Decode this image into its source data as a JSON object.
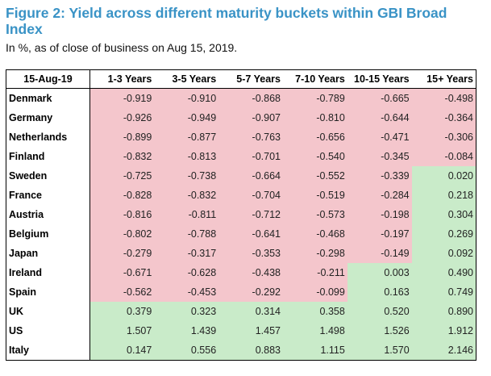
{
  "title": "Figure 2: Yield across different maturity buckets within GBI Broad Index",
  "subtitle": "In %, as of close of business on Aug 15, 2019.",
  "colors": {
    "title": "#3a93c6",
    "negative_cell": "#f4c6cc",
    "positive_cell": "#c9ebc9"
  },
  "table": {
    "headers": [
      "15-Aug-19",
      "1-3 Years",
      "3-5 Years",
      "5-7 Years",
      "7-10 Years",
      "10-15 Years",
      "15+ Years"
    ],
    "rows": [
      {
        "country": "Denmark",
        "values": [
          "-0.919",
          "-0.910",
          "-0.868",
          "-0.789",
          "-0.665",
          "-0.498"
        ]
      },
      {
        "country": "Germany",
        "values": [
          "-0.926",
          "-0.949",
          "-0.907",
          "-0.810",
          "-0.644",
          "-0.364"
        ]
      },
      {
        "country": "Netherlands",
        "values": [
          "-0.899",
          "-0.877",
          "-0.763",
          "-0.656",
          "-0.471",
          "-0.306"
        ]
      },
      {
        "country": "Finland",
        "values": [
          "-0.832",
          "-0.813",
          "-0.701",
          "-0.540",
          "-0.345",
          "-0.084"
        ]
      },
      {
        "country": "Sweden",
        "values": [
          "-0.725",
          "-0.738",
          "-0.664",
          "-0.552",
          "-0.339",
          "0.020"
        ]
      },
      {
        "country": "France",
        "values": [
          "-0.828",
          "-0.832",
          "-0.704",
          "-0.519",
          "-0.284",
          "0.218"
        ]
      },
      {
        "country": "Austria",
        "values": [
          "-0.816",
          "-0.811",
          "-0.712",
          "-0.573",
          "-0.198",
          "0.304"
        ]
      },
      {
        "country": "Belgium",
        "values": [
          "-0.802",
          "-0.788",
          "-0.641",
          "-0.468",
          "-0.197",
          "0.269"
        ]
      },
      {
        "country": "Japan",
        "values": [
          "-0.279",
          "-0.317",
          "-0.353",
          "-0.298",
          "-0.149",
          "0.092"
        ]
      },
      {
        "country": "Ireland",
        "values": [
          "-0.671",
          "-0.628",
          "-0.438",
          "-0.211",
          "0.003",
          "0.490"
        ]
      },
      {
        "country": "Spain",
        "values": [
          "-0.562",
          "-0.453",
          "-0.292",
          "-0.099",
          "0.163",
          "0.749"
        ]
      },
      {
        "country": "UK",
        "values": [
          "0.379",
          "0.323",
          "0.314",
          "0.358",
          "0.520",
          "0.890"
        ]
      },
      {
        "country": "US",
        "values": [
          "1.507",
          "1.439",
          "1.457",
          "1.498",
          "1.526",
          "1.912"
        ]
      },
      {
        "country": "Italy",
        "values": [
          "0.147",
          "0.556",
          "0.883",
          "1.115",
          "1.570",
          "2.146"
        ]
      }
    ]
  }
}
